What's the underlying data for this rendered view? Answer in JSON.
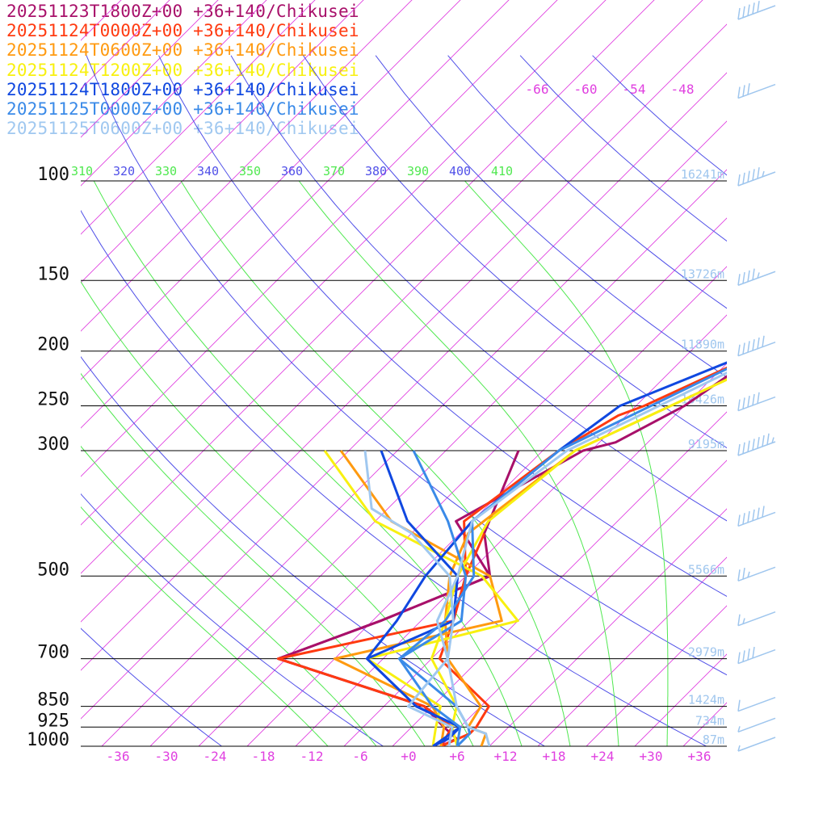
{
  "colors": {
    "isotherm": "#e040e0",
    "dry_adiabat": "#5050e8",
    "moist_adiabat": "#50e850",
    "pressure_line": "#000000",
    "height_label": "#9fc6ee",
    "wind_barb": "#9fc6ee",
    "temp_label": "#e040e0"
  },
  "chart_data": {
    "type": "line",
    "title": "",
    "xlabel": "",
    "ylabel": "",
    "diagram": "skew-T log-p",
    "ylim": [
      1000,
      100
    ],
    "xlim": [
      -40,
      40
    ],
    "pressure_levels": [
      {
        "p": 100,
        "label": "100",
        "height": "16241m"
      },
      {
        "p": 150,
        "label": "150",
        "height": "13726m"
      },
      {
        "p": 200,
        "label": "200",
        "height": "11890m"
      },
      {
        "p": 250,
        "label": "250",
        "height": "10426m"
      },
      {
        "p": 300,
        "label": "300",
        "height": "9195m"
      },
      {
        "p": 500,
        "label": "500",
        "height": "5566m"
      },
      {
        "p": 700,
        "label": "700",
        "height": "2979m"
      },
      {
        "p": 850,
        "label": "850",
        "height": "1424m"
      },
      {
        "p": 925,
        "label": "925",
        "height": "734m"
      },
      {
        "p": 1000,
        "label": "1000",
        "height": "87m"
      }
    ],
    "temperature_ticks": [
      "-36",
      "-30",
      "-24",
      "-18",
      "-12",
      "-6",
      "+0",
      "+6",
      "+12",
      "+18",
      "+24",
      "+30",
      "+36"
    ],
    "upper_temperature_labels": [
      "-66",
      "-60",
      "-54",
      "-48"
    ],
    "theta_labels": [
      "310",
      "320",
      "330",
      "340",
      "350",
      "360",
      "370",
      "380",
      "390",
      "400",
      "410"
    ],
    "series": [
      {
        "name": "20251123T1800Z+00 +36+140/Chikusei",
        "color": "#a8106a",
        "temperature": [
          [
            1000,
            4
          ],
          [
            970,
            5
          ],
          [
            925,
            2
          ],
          [
            850,
            -3
          ],
          [
            700,
            -27
          ],
          [
            600,
            -19
          ],
          [
            500,
            -11
          ],
          [
            400,
            -22
          ],
          [
            300,
            -15
          ],
          [
            290,
            -12
          ],
          [
            250,
            -8
          ],
          [
            200,
            -5
          ],
          [
            180,
            -3.5
          ],
          [
            160,
            -2
          ],
          [
            150,
            -2
          ],
          [
            130,
            -3
          ],
          [
            100,
            -6
          ],
          [
            95,
            -9
          ],
          [
            80,
            -17
          ],
          [
            70,
            -22
          ],
          [
            60,
            -30
          ],
          [
            52,
            -40
          ],
          [
            45,
            -48
          ]
        ],
        "dewpoint": [
          [
            925,
            2
          ],
          [
            850,
            -3
          ],
          [
            700,
            -27
          ],
          [
            600,
            -19
          ],
          [
            500,
            -11
          ],
          [
            420,
            -17
          ],
          [
            300,
            -23
          ]
        ]
      },
      {
        "name": "20251124T0000Z+00 +36+140/Chikusei",
        "color": "#ff3a10",
        "temperature": [
          [
            1000,
            4
          ],
          [
            950,
            6
          ],
          [
            925,
            6
          ],
          [
            850,
            5
          ],
          [
            700,
            -7
          ],
          [
            600,
            -10
          ],
          [
            500,
            -14
          ],
          [
            400,
            -21
          ],
          [
            300,
            -18
          ],
          [
            260,
            -15
          ],
          [
            250,
            -13
          ],
          [
            200,
            -5
          ],
          [
            170,
            -2.5
          ],
          [
            150,
            -1.5
          ],
          [
            120,
            -2
          ],
          [
            100,
            -6
          ],
          [
            80,
            -15
          ],
          [
            65,
            -23
          ],
          [
            55,
            -31
          ],
          [
            45,
            -44
          ]
        ],
        "dewpoint": [
          [
            1000,
            4
          ],
          [
            925,
            3
          ],
          [
            850,
            -3
          ],
          [
            700,
            -27
          ],
          [
            600,
            -10
          ],
          [
            500,
            -14
          ],
          [
            420,
            -17
          ]
        ]
      },
      {
        "name": "20251124T0600Z+00 +36+140/Chikusei",
        "color": "#ff9a10",
        "temperature": [
          [
            1000,
            9
          ],
          [
            950,
            8
          ],
          [
            925,
            5
          ],
          [
            850,
            4
          ],
          [
            700,
            -6
          ],
          [
            600,
            -11
          ],
          [
            500,
            -16
          ],
          [
            420,
            -19
          ],
          [
            300,
            -16
          ],
          [
            200,
            -2
          ],
          [
            150,
            -1
          ],
          [
            100,
            -6
          ],
          [
            80,
            -16
          ],
          [
            65,
            -24
          ],
          [
            55,
            -33
          ],
          [
            45,
            -44
          ]
        ],
        "dewpoint": [
          [
            1000,
            4
          ],
          [
            925,
            2
          ],
          [
            850,
            -2
          ],
          [
            700,
            -20
          ],
          [
            600,
            -4
          ],
          [
            500,
            -11
          ],
          [
            400,
            -30
          ],
          [
            300,
            -45
          ]
        ]
      },
      {
        "name": "20251124T1200Z+00 +36+140/Chikusei",
        "color": "#f8f010",
        "temperature": [
          [
            1000,
            6
          ],
          [
            925,
            3
          ],
          [
            850,
            1
          ],
          [
            700,
            -8
          ],
          [
            600,
            -11
          ],
          [
            500,
            -15
          ],
          [
            400,
            -18
          ],
          [
            300,
            -16
          ],
          [
            200,
            -2
          ],
          [
            150,
            -1
          ],
          [
            100,
            -6
          ],
          [
            80,
            -16
          ],
          [
            65,
            -25
          ],
          [
            50,
            -37
          ],
          [
            45,
            -43
          ]
        ],
        "dewpoint": [
          [
            1000,
            3
          ],
          [
            925,
            1
          ],
          [
            850,
            -1
          ],
          [
            700,
            -16
          ],
          [
            600,
            -2
          ],
          [
            500,
            -12
          ],
          [
            400,
            -32
          ],
          [
            300,
            -47
          ]
        ]
      },
      {
        "name": "20251124T1800Z+00 +36+140/Chikusei",
        "color": "#1048e0",
        "temperature": [
          [
            1000,
            3
          ],
          [
            970,
            4
          ],
          [
            925,
            4
          ],
          [
            850,
            -4
          ],
          [
            700,
            -16
          ],
          [
            600,
            -17
          ],
          [
            500,
            -19
          ],
          [
            400,
            -20
          ],
          [
            300,
            -18
          ],
          [
            250,
            -16
          ],
          [
            200,
            -6
          ],
          [
            150,
            -4
          ],
          [
            120,
            -4
          ],
          [
            100,
            -7
          ],
          [
            85,
            -10
          ],
          [
            70,
            -20
          ],
          [
            58,
            -30
          ],
          [
            45,
            -43
          ]
        ],
        "dewpoint": [
          [
            1000,
            3
          ],
          [
            925,
            4
          ],
          [
            850,
            -4
          ],
          [
            700,
            -16
          ],
          [
            600,
            -10
          ],
          [
            500,
            -15
          ],
          [
            400,
            -28
          ],
          [
            300,
            -40
          ]
        ]
      },
      {
        "name": "20251125T0000Z+00 +36+140/Chikusei",
        "color": "#3a8ae8",
        "temperature": [
          [
            1000,
            6
          ],
          [
            950,
            6
          ],
          [
            925,
            5
          ],
          [
            850,
            1
          ],
          [
            700,
            -12
          ],
          [
            600,
            -11
          ],
          [
            500,
            -13
          ],
          [
            400,
            -20
          ],
          [
            300,
            -18
          ],
          [
            200,
            -5
          ],
          [
            150,
            -4
          ],
          [
            120,
            -6
          ],
          [
            100,
            -7
          ],
          [
            85,
            -10
          ],
          [
            70,
            -20
          ],
          [
            60,
            -29
          ],
          [
            45,
            -44
          ]
        ],
        "dewpoint": [
          [
            1000,
            6
          ],
          [
            925,
            4
          ],
          [
            850,
            -2
          ],
          [
            700,
            -12
          ],
          [
            600,
            -9
          ],
          [
            500,
            -14
          ],
          [
            400,
            -23
          ],
          [
            300,
            -36
          ]
        ]
      },
      {
        "name": "20251125T0600Z+00 +36+140/Chikusei",
        "color": "#a0c8f0",
        "temperature": [
          [
            1000,
            10
          ],
          [
            950,
            8
          ],
          [
            925,
            5
          ],
          [
            850,
            1
          ],
          [
            700,
            -6
          ],
          [
            600,
            -12
          ],
          [
            500,
            -15
          ],
          [
            400,
            -20
          ],
          [
            300,
            -17
          ],
          [
            200,
            -4
          ],
          [
            150,
            -4
          ],
          [
            100,
            -9
          ],
          [
            80,
            -16
          ],
          [
            65,
            -27
          ],
          [
            45,
            -44
          ]
        ],
        "dewpoint": [
          [
            1000,
            5
          ],
          [
            925,
            3
          ],
          [
            850,
            -5
          ],
          [
            700,
            -6
          ],
          [
            600,
            -10
          ],
          [
            500,
            -16
          ],
          [
            420,
            -26
          ],
          [
            380,
            -34
          ],
          [
            300,
            -42
          ]
        ]
      }
    ],
    "wind_barbs": [
      {
        "p": 45,
        "dir": 250,
        "speed": 50
      },
      {
        "p": 70,
        "dir": 250,
        "speed": 30
      },
      {
        "p": 100,
        "dir": 250,
        "speed": 55
      },
      {
        "p": 150,
        "dir": 250,
        "speed": 45
      },
      {
        "p": 200,
        "dir": 250,
        "speed": 60
      },
      {
        "p": 250,
        "dir": 250,
        "speed": 50
      },
      {
        "p": 300,
        "dir": 250,
        "speed": 75
      },
      {
        "p": 400,
        "dir": 250,
        "speed": 60
      },
      {
        "p": 500,
        "dir": 240,
        "speed": 25
      },
      {
        "p": 600,
        "dir": 240,
        "speed": 15
      },
      {
        "p": 700,
        "dir": 250,
        "speed": 40
      },
      {
        "p": 850,
        "dir": 240,
        "speed": 10
      },
      {
        "p": 925,
        "dir": 230,
        "speed": 5
      },
      {
        "p": 1000,
        "dir": 200,
        "speed": 5
      }
    ]
  }
}
